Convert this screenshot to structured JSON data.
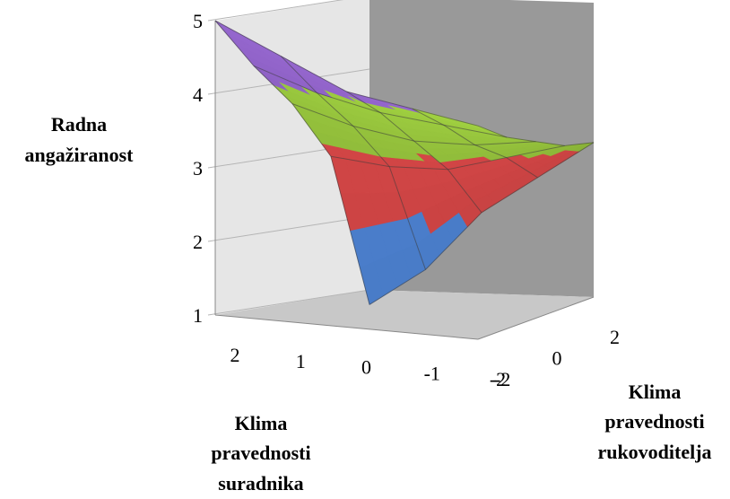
{
  "chart_data": {
    "type": "surface",
    "title": "",
    "zlabel": [
      "Radna",
      "angažiranost"
    ],
    "xlabel": [
      "Klima",
      "pravednosti",
      "suradnika"
    ],
    "ylabel": [
      "Klima",
      "pravednosti",
      "rukovoditelja"
    ],
    "zlim": [
      1,
      5
    ],
    "z_ticks": [
      "1",
      "2",
      "3",
      "4",
      "5"
    ],
    "x_ticks": [
      "2",
      "1",
      "0",
      "-1",
      "-2"
    ],
    "y_ticks": [
      "-2",
      "0",
      "2"
    ],
    "x": [
      2,
      1,
      0,
      -1,
      -2
    ],
    "y": [
      -2,
      -1,
      0,
      1,
      2
    ],
    "z": [
      [
        5.0,
        4.6,
        4.2,
        4.05,
        3.9
      ],
      [
        4.3,
        4.0,
        3.8,
        3.7,
        3.6
      ],
      [
        3.7,
        3.45,
        3.3,
        3.3,
        3.4
      ],
      [
        2.9,
        2.8,
        2.8,
        3.0,
        3.2
      ],
      [
        0.8,
        1.3,
        2.1,
        2.6,
        3.1
      ]
    ],
    "bands": [
      {
        "range": [
          1,
          2
        ],
        "color": "#4f86d8"
      },
      {
        "range": [
          2,
          3
        ],
        "color": "#d94848"
      },
      {
        "range": [
          3,
          4
        ],
        "color": "#95c23c"
      },
      {
        "range": [
          4,
          5
        ],
        "color": "#8a5fbf"
      }
    ],
    "colors": {
      "back_wall": "#999999",
      "side_wall": "#e6e6e6",
      "floor": "#c8c8c8",
      "gridline": "#b5b5b5"
    }
  }
}
